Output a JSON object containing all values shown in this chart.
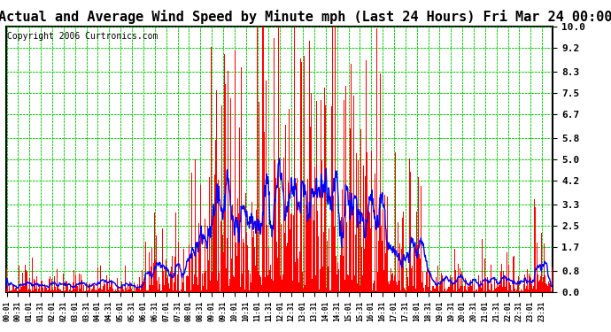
{
  "title": "Actual and Average Wind Speed by Minute mph (Last 24 Hours) Fri Mar 24 00:00",
  "copyright": "Copyright 2006 Curtronics.com",
  "yticks": [
    0.0,
    0.8,
    1.7,
    2.5,
    3.3,
    4.2,
    5.0,
    5.8,
    6.7,
    7.5,
    8.3,
    9.2,
    10.0
  ],
  "ylim": [
    0.0,
    10.0
  ],
  "bar_color": "#FF0000",
  "line_color": "#0000FF",
  "grid_color": "#00CC00",
  "bg_color": "#FFFFFF",
  "title_bg": "#FFFFFF",
  "border_color": "#000000",
  "title_fontsize": 11,
  "copyright_fontsize": 7,
  "total_minutes": 1440,
  "xtick_interval": 30
}
